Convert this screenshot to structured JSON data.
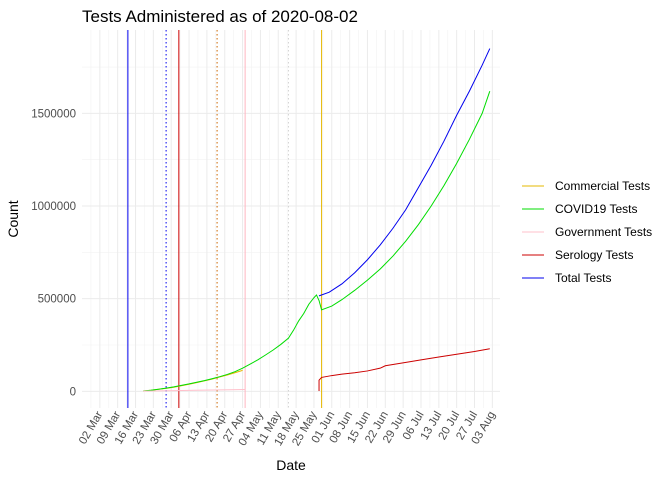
{
  "chart_data": {
    "type": "line",
    "title": "Tests Administered as of 2020-08-02",
    "xlabel": "Date",
    "ylabel": "Count",
    "x_tick_labels": [
      "02 Mar",
      "09 Mar",
      "16 Mar",
      "23 Mar",
      "30 Mar",
      "06 Apr",
      "13 Apr",
      "20 Apr",
      "27 Apr",
      "04 May",
      "11 May",
      "18 May",
      "25 May",
      "01 Jun",
      "08 Jun",
      "15 Jun",
      "22 Jun",
      "29 Jun",
      "06 Jul",
      "13 Jul",
      "20 Jul",
      "27 Jul",
      "03 Aug"
    ],
    "x_tick_values": [
      "2020-03-02",
      "2020-03-09",
      "2020-03-16",
      "2020-03-23",
      "2020-03-30",
      "2020-04-06",
      "2020-04-13",
      "2020-04-20",
      "2020-04-27",
      "2020-05-04",
      "2020-05-11",
      "2020-05-18",
      "2020-05-25",
      "2020-06-01",
      "2020-06-08",
      "2020-06-15",
      "2020-06-22",
      "2020-06-29",
      "2020-07-06",
      "2020-07-13",
      "2020-07-20",
      "2020-07-27",
      "2020-08-03"
    ],
    "xlim": [
      "2020-02-24",
      "2020-08-06"
    ],
    "y_ticks": [
      0,
      500000,
      1000000,
      1500000
    ],
    "y_tick_labels": [
      "0",
      "500000",
      "1000000",
      "1500000"
    ],
    "ylim": [
      -90000,
      1950000
    ],
    "grid": true,
    "legend_position": "right",
    "series": [
      {
        "name": "Commercial Tests",
        "color": "#e6b800",
        "points": [
          [
            "2020-03-19",
            2000
          ],
          [
            "2020-03-22",
            6000
          ],
          [
            "2020-03-25",
            11000
          ],
          [
            "2020-03-28",
            16000
          ],
          [
            "2020-03-31",
            22000
          ],
          [
            "2020-04-03",
            30000
          ],
          [
            "2020-04-06",
            38000
          ],
          [
            "2020-04-09",
            47000
          ],
          [
            "2020-04-12",
            56000
          ],
          [
            "2020-04-15",
            66000
          ],
          [
            "2020-04-18",
            77000
          ],
          [
            "2020-04-21",
            88000
          ],
          [
            "2020-04-24",
            100000
          ],
          [
            "2020-04-27",
            113000
          ]
        ]
      },
      {
        "name": "COVID19 Tests",
        "color": "#00dd00",
        "points": [
          [
            "2020-03-19",
            2000
          ],
          [
            "2020-03-22",
            6000
          ],
          [
            "2020-03-25",
            11000
          ],
          [
            "2020-03-28",
            17000
          ],
          [
            "2020-03-31",
            24000
          ],
          [
            "2020-04-03",
            32000
          ],
          [
            "2020-04-06",
            40000
          ],
          [
            "2020-04-09",
            49000
          ],
          [
            "2020-04-12",
            58000
          ],
          [
            "2020-04-15",
            68000
          ],
          [
            "2020-04-18",
            79000
          ],
          [
            "2020-04-21",
            91000
          ],
          [
            "2020-04-24",
            106000
          ],
          [
            "2020-04-27",
            125000
          ],
          [
            "2020-04-30",
            147000
          ],
          [
            "2020-05-03",
            170000
          ],
          [
            "2020-05-06",
            196000
          ],
          [
            "2020-05-09",
            223000
          ],
          [
            "2020-05-12",
            253000
          ],
          [
            "2020-05-15",
            287000
          ],
          [
            "2020-05-17",
            330000
          ],
          [
            "2020-05-19",
            380000
          ],
          [
            "2020-05-21",
            420000
          ],
          [
            "2020-05-23",
            470000
          ],
          [
            "2020-05-25",
            505000
          ],
          [
            "2020-05-26",
            520000
          ],
          [
            "2020-05-27",
            490000
          ],
          [
            "2020-05-28",
            440000
          ],
          [
            "2020-06-01",
            460000
          ],
          [
            "2020-06-05",
            495000
          ],
          [
            "2020-06-10",
            545000
          ],
          [
            "2020-06-15",
            600000
          ],
          [
            "2020-06-20",
            660000
          ],
          [
            "2020-06-25",
            730000
          ],
          [
            "2020-06-30",
            810000
          ],
          [
            "2020-07-05",
            900000
          ],
          [
            "2020-07-10",
            1000000
          ],
          [
            "2020-07-15",
            1110000
          ],
          [
            "2020-07-20",
            1230000
          ],
          [
            "2020-07-25",
            1360000
          ],
          [
            "2020-07-30",
            1500000
          ],
          [
            "2020-08-02",
            1620000
          ]
        ]
      },
      {
        "name": "Government Tests",
        "color": "#ffc0cb",
        "points": [
          [
            "2020-03-19",
            1000
          ],
          [
            "2020-03-25",
            2500
          ],
          [
            "2020-04-01",
            4000
          ],
          [
            "2020-04-08",
            5500
          ],
          [
            "2020-04-15",
            7000
          ],
          [
            "2020-04-22",
            8500
          ],
          [
            "2020-04-28",
            10000
          ]
        ]
      },
      {
        "name": "Serology Tests",
        "color": "#cc0000",
        "points": [
          [
            "2020-05-27",
            2000
          ],
          [
            "2020-05-27",
            60000
          ],
          [
            "2020-05-28",
            75000
          ],
          [
            "2020-06-01",
            85000
          ],
          [
            "2020-06-05",
            93000
          ],
          [
            "2020-06-10",
            100000
          ],
          [
            "2020-06-15",
            110000
          ],
          [
            "2020-06-20",
            125000
          ],
          [
            "2020-06-22",
            138000
          ],
          [
            "2020-06-25",
            145000
          ],
          [
            "2020-07-01",
            158000
          ],
          [
            "2020-07-06",
            170000
          ],
          [
            "2020-07-13",
            185000
          ],
          [
            "2020-07-20",
            200000
          ],
          [
            "2020-07-27",
            215000
          ],
          [
            "2020-08-02",
            230000
          ]
        ]
      },
      {
        "name": "Total Tests",
        "color": "#0000ee",
        "points": [
          [
            "2020-05-27",
            515000
          ],
          [
            "2020-05-31",
            535000
          ],
          [
            "2020-06-05",
            580000
          ],
          [
            "2020-06-10",
            640000
          ],
          [
            "2020-06-15",
            710000
          ],
          [
            "2020-06-20",
            790000
          ],
          [
            "2020-06-25",
            880000
          ],
          [
            "2020-06-30",
            980000
          ],
          [
            "2020-07-05",
            1100000
          ],
          [
            "2020-07-10",
            1220000
          ],
          [
            "2020-07-15",
            1350000
          ],
          [
            "2020-07-20",
            1490000
          ],
          [
            "2020-07-25",
            1620000
          ],
          [
            "2020-07-30",
            1760000
          ],
          [
            "2020-08-02",
            1850000
          ]
        ]
      }
    ],
    "vertical_lines": [
      {
        "date": "2020-03-13",
        "color": "#0000ee",
        "style": "solid"
      },
      {
        "date": "2020-03-28",
        "color": "#0000ee",
        "style": "dotted"
      },
      {
        "date": "2020-04-02",
        "color": "#cc0000",
        "style": "solid"
      },
      {
        "date": "2020-04-17",
        "color": "#cc6600",
        "style": "dotted"
      },
      {
        "date": "2020-04-28",
        "color": "#ffb6c1",
        "style": "solid"
      },
      {
        "date": "2020-05-15",
        "color": "#d3d3d3",
        "style": "dotted"
      },
      {
        "date": "2020-05-28",
        "color": "#e6b800",
        "style": "solid"
      }
    ]
  }
}
